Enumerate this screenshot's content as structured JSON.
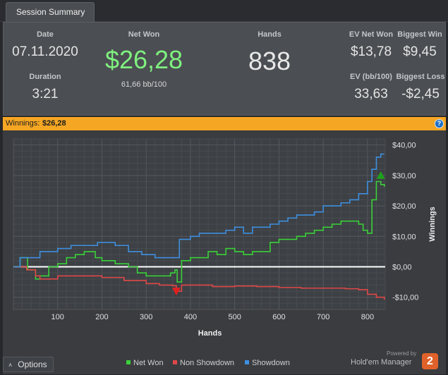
{
  "tabs": [
    {
      "label": "Session Summary"
    }
  ],
  "summary": {
    "date_label": "Date",
    "date_value": "07.11.2020",
    "duration_label": "Duration",
    "duration_value": "3:21",
    "netwon_label": "Net Won",
    "netwon_value": "$26,28",
    "netwon_bb": "61,66 bb/100",
    "hands_label": "Hands",
    "hands_value": "838",
    "ev_netwon_label": "EV Net Won",
    "ev_netwon_value": "$13,78",
    "biggest_win_label": "Biggest Win",
    "biggest_win_value": "$9,45",
    "ev_bb_label": "EV (bb/100)",
    "ev_bb_value": "33,63",
    "biggest_loss_label": "Biggest Loss",
    "biggest_loss_value": "-$2,45"
  },
  "winnings_bar": {
    "label": "Winnings:",
    "value": "$26,28",
    "help": "?"
  },
  "colors": {
    "net_won": "#3ad13a",
    "non_showdown": "#e04848",
    "showdown": "#3f8fe0",
    "accent": "#f5a623",
    "net_won_text": "#7ff07f"
  },
  "chart_data": {
    "type": "line",
    "xlabel": "Hands",
    "ylabel": "Winnings",
    "xlim": [
      0,
      840
    ],
    "ylim": [
      -14,
      42
    ],
    "x_ticks": [
      100,
      200,
      300,
      400,
      500,
      600,
      700,
      800
    ],
    "y_ticks": [
      -10,
      0,
      10,
      20,
      30,
      40
    ],
    "y_tick_labels": [
      "-$10,00",
      "$0,00",
      "$10,00",
      "$20,00",
      "$30,00",
      "$40,00"
    ],
    "grid": true,
    "legend_position": "bottom",
    "series": [
      {
        "name": "Net Won",
        "color": "#3ad13a",
        "x": [
          0,
          15,
          28,
          32,
          50,
          60,
          80,
          100,
          120,
          140,
          160,
          185,
          200,
          230,
          260,
          280,
          300,
          320,
          345,
          355,
          365,
          370,
          380,
          400,
          420,
          440,
          460,
          480,
          500,
          520,
          540,
          560,
          580,
          600,
          620,
          640,
          660,
          680,
          700,
          720,
          740,
          760,
          780,
          790,
          800,
          810,
          820,
          830,
          838
        ],
        "y": [
          0,
          3,
          3,
          -1,
          -4,
          -3,
          0,
          1,
          3,
          4,
          5,
          3,
          2,
          1,
          0,
          -2,
          -3,
          -3,
          -3,
          -2,
          -1,
          -5,
          2,
          3,
          3,
          5,
          4,
          6,
          5,
          4,
          5,
          5,
          8,
          9,
          9,
          10,
          11,
          12,
          13,
          14,
          15,
          15,
          14,
          12,
          11,
          22,
          28,
          27,
          26.28
        ]
      },
      {
        "name": "Non Showdown",
        "color": "#e04848",
        "x": [
          0,
          30,
          50,
          60,
          80,
          100,
          150,
          200,
          250,
          300,
          330,
          360,
          368,
          380,
          400,
          450,
          500,
          550,
          600,
          650,
          700,
          750,
          780,
          800,
          820,
          838
        ],
        "y": [
          0,
          -1,
          -3,
          -4,
          -4,
          -3,
          -3,
          -3.5,
          -4.5,
          -5.5,
          -6,
          -6.2,
          -8,
          -6,
          -6,
          -6.5,
          -6.3,
          -6.5,
          -6.8,
          -7,
          -7,
          -7.2,
          -7.5,
          -9,
          -10,
          -10.8
        ]
      },
      {
        "name": "Showdown",
        "color": "#3f8fe0",
        "x": [
          0,
          15,
          28,
          40,
          60,
          80,
          100,
          130,
          160,
          190,
          230,
          260,
          290,
          320,
          350,
          370,
          375,
          400,
          420,
          450,
          480,
          500,
          520,
          540,
          560,
          580,
          600,
          620,
          640,
          660,
          680,
          700,
          720,
          740,
          760,
          780,
          800,
          810,
          820,
          830,
          838
        ],
        "y": [
          0,
          3,
          3,
          3,
          5,
          5,
          6,
          7,
          7,
          8,
          7,
          5,
          4,
          3,
          3,
          3,
          9,
          10,
          11,
          11,
          12,
          13,
          11,
          13,
          13,
          14,
          15,
          16,
          17,
          17,
          18,
          20,
          20,
          21,
          22,
          24,
          28,
          32,
          36,
          37,
          37
        ]
      }
    ],
    "markers": [
      {
        "type": "up",
        "x": 830,
        "y": 30,
        "color": "#1ea01e"
      },
      {
        "type": "down",
        "x": 368,
        "y": -8,
        "color": "#e02020"
      }
    ]
  },
  "footer": {
    "options_label": "Options",
    "legend": [
      {
        "name": "Net Won"
      },
      {
        "name": "Non Showdown"
      },
      {
        "name": "Showdown"
      }
    ],
    "brand_powered": "Powered by",
    "brand_name": "Hold'em Manager",
    "brand_version": "2"
  }
}
